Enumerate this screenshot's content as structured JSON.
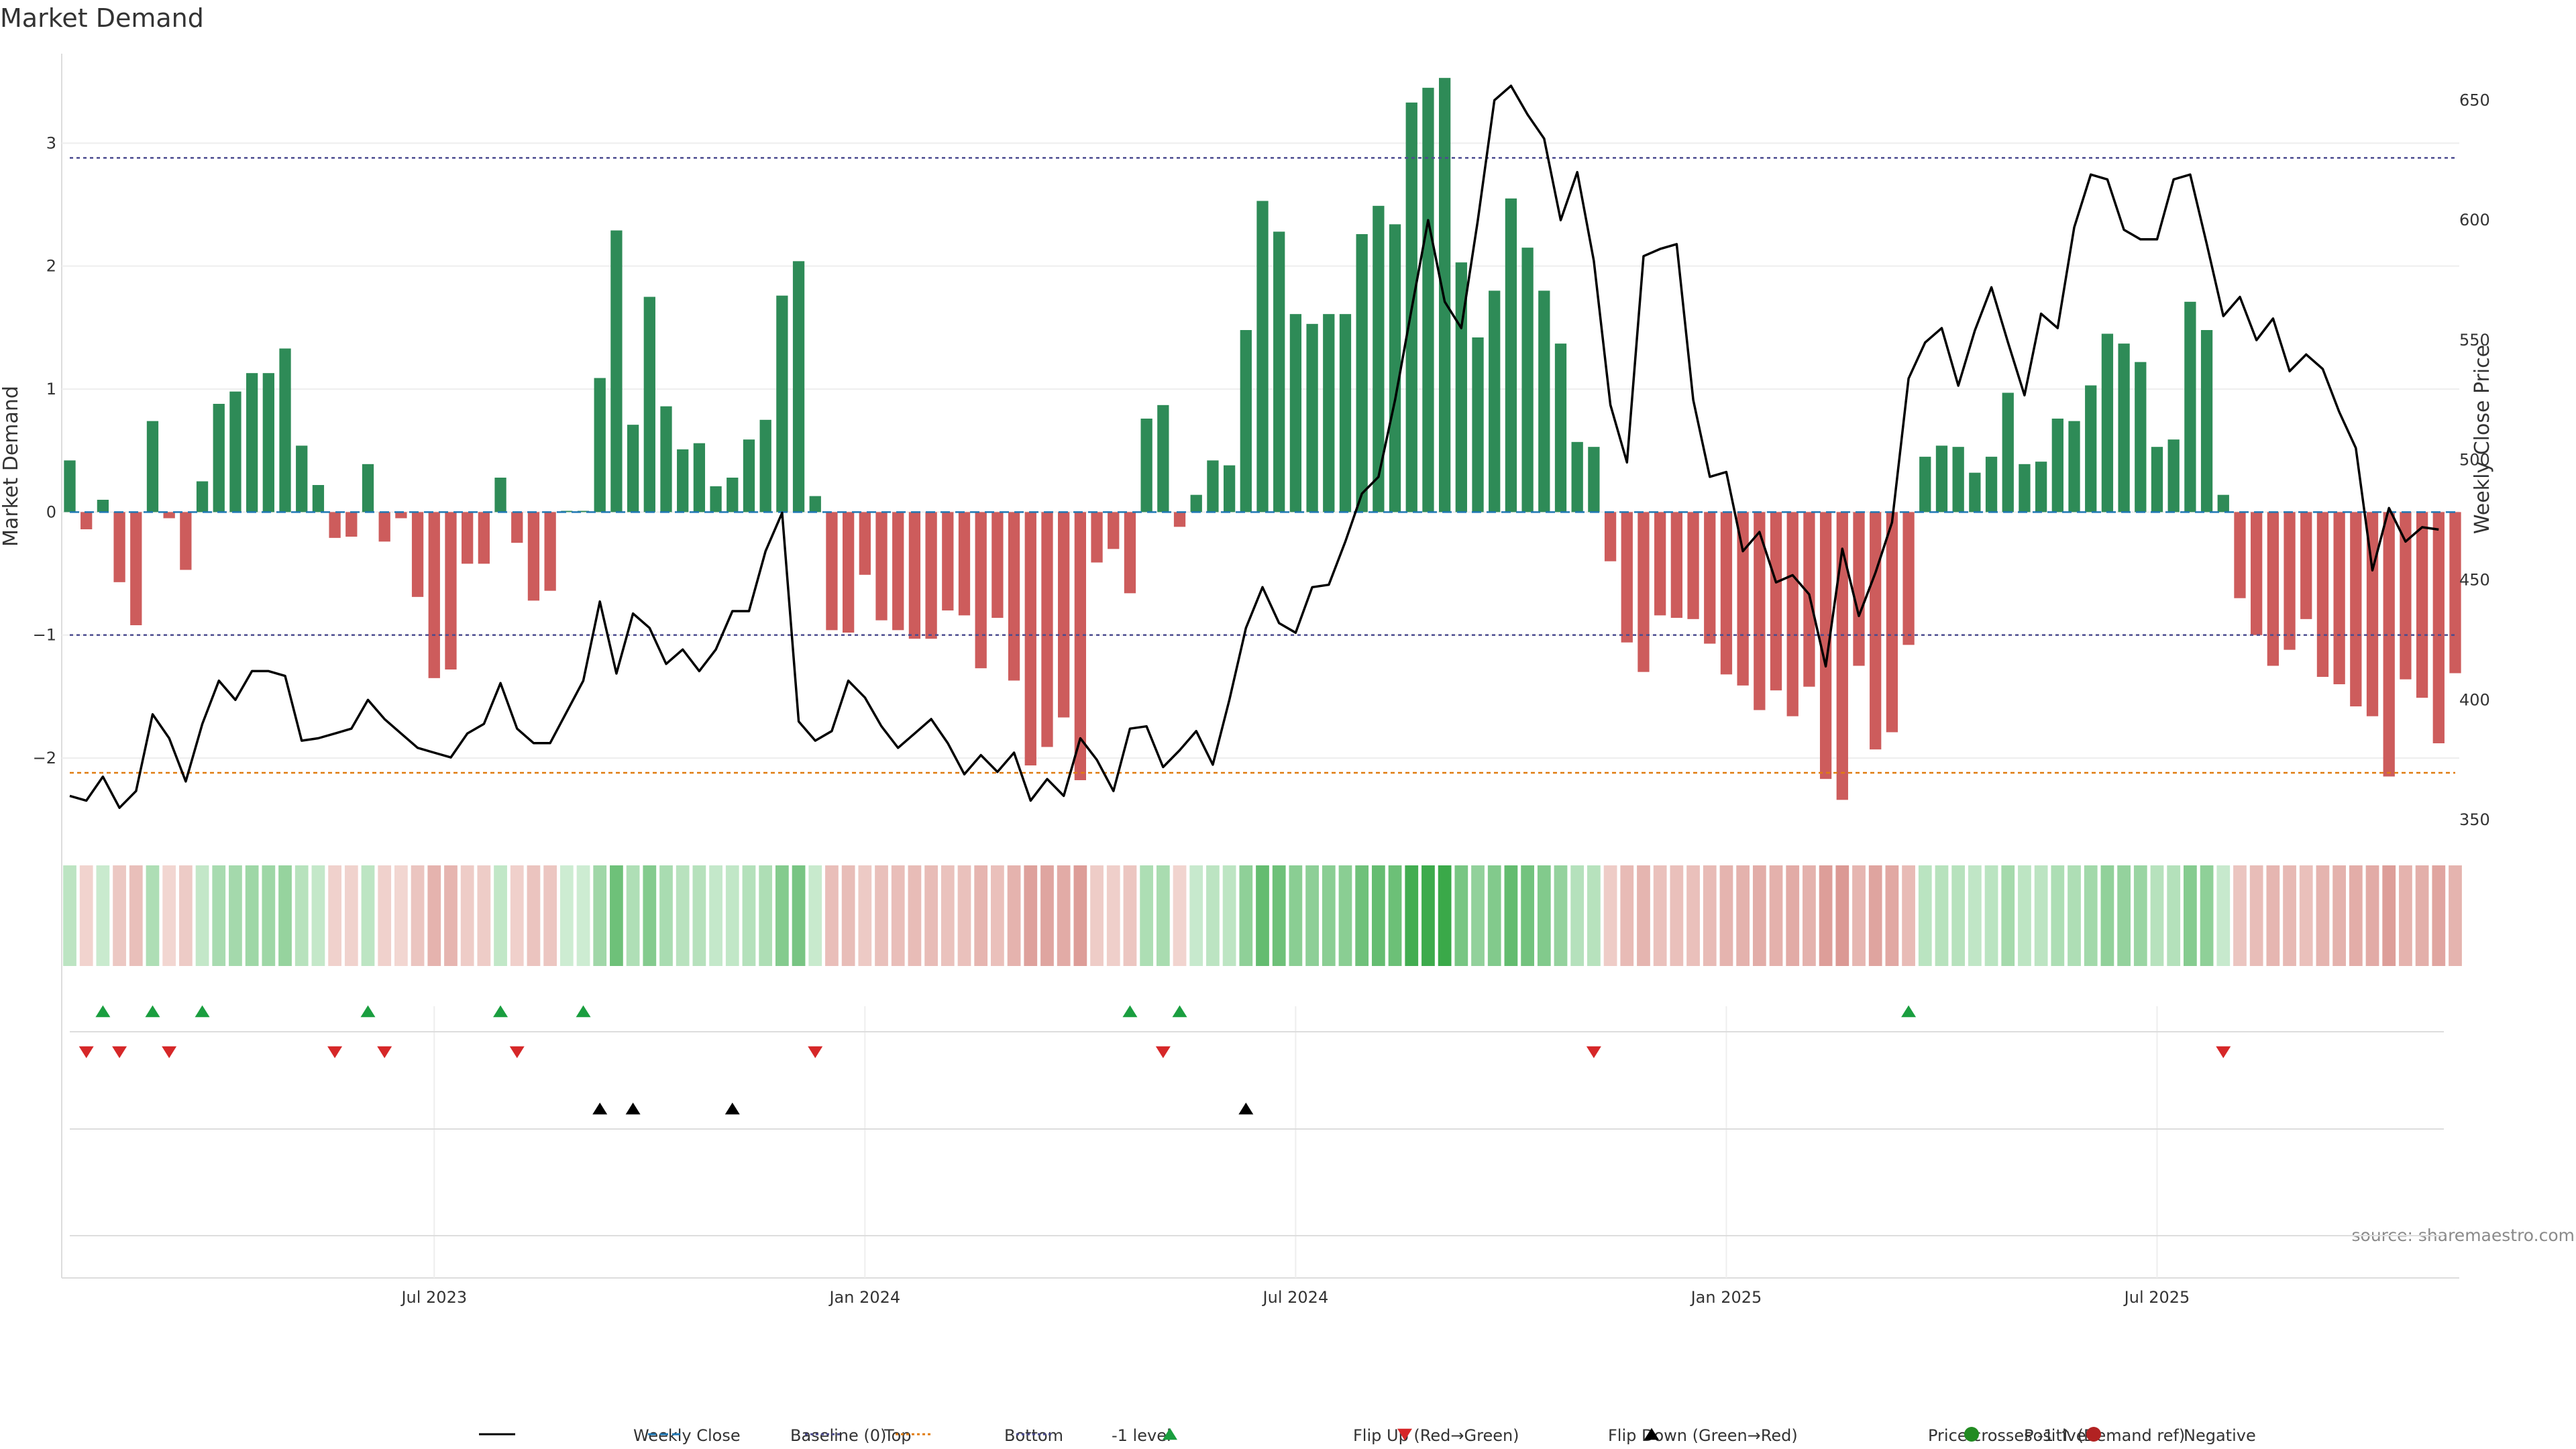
{
  "chart_data": {
    "type": "bar",
    "title": "Market Demand",
    "ylabel": "Market Demand",
    "y2label": "Weekly Close Price",
    "source": "source: sharemaestro.com",
    "ylim": [
      -2.6,
      3.7
    ],
    "y2lim": [
      345,
      668
    ],
    "yticks": [
      -2,
      -1,
      0,
      1,
      2,
      3
    ],
    "y2ticks": [
      350,
      400,
      450,
      500,
      550,
      600,
      650
    ],
    "x_tick_labels": [
      "Jul 2023",
      "Jan 2024",
      "Jul 2024",
      "Jan 2025",
      "Jul 2025"
    ],
    "x_tick_weeks": [
      22,
      48,
      74,
      100,
      126
    ],
    "reference_lines": {
      "top": 2.88,
      "bottom": -2.12,
      "minus_one": -1
    },
    "colors": {
      "positive": "#2e8b57",
      "negative": "#cd5c5c",
      "close": "#000000",
      "top": "#4b4b8f",
      "bottom": "#e07b10",
      "flip_up": "#1a9e3f",
      "flip_down": "#d62728"
    },
    "demand": [
      0.42,
      -0.14,
      0.1,
      -0.57,
      -0.92,
      0.74,
      -0.05,
      -0.47,
      0.25,
      0.88,
      0.98,
      1.13,
      1.13,
      1.33,
      0.54,
      0.22,
      -0.21,
      -0.2,
      0.39,
      -0.24,
      -0.05,
      -0.69,
      -1.35,
      -1.28,
      -0.42,
      -0.42,
      0.28,
      -0.25,
      -0.72,
      -0.64,
      0.01,
      0.01,
      1.09,
      2.29,
      0.71,
      1.75,
      0.86,
      0.51,
      0.56,
      0.21,
      0.28,
      0.59,
      0.75,
      1.76,
      2.04,
      0.13,
      -0.96,
      -0.98,
      -0.51,
      -0.88,
      -0.96,
      -1.03,
      -1.03,
      -0.8,
      -0.84,
      -1.27,
      -0.86,
      -1.37,
      -2.06,
      -1.91,
      -1.67,
      -2.18,
      -0.41,
      -0.3,
      -0.66,
      0.76,
      0.87,
      -0.12,
      0.14,
      0.42,
      0.38,
      1.48,
      2.53,
      2.28,
      1.61,
      1.53,
      1.61,
      1.61,
      2.26,
      2.49,
      2.34,
      3.33,
      3.45,
      3.53,
      2.03,
      1.42,
      1.8,
      2.55,
      2.15,
      1.8,
      1.37,
      0.57,
      0.53,
      -0.4,
      -1.06,
      -1.3,
      -0.84,
      -0.86,
      -0.87,
      -1.07,
      -1.32,
      -1.41,
      -1.61,
      -1.45,
      -1.66,
      -1.42,
      -2.17,
      -2.34,
      -1.25,
      -1.93,
      -1.79,
      -1.08,
      0.45,
      0.54,
      0.53,
      0.32,
      0.45,
      0.97,
      0.39,
      0.41,
      0.76,
      0.74,
      1.03,
      1.45,
      1.37,
      1.22,
      0.53,
      0.59,
      1.71,
      1.48,
      0.14,
      -0.7,
      -1.0,
      -1.25,
      -1.12,
      -0.87,
      -1.34,
      -1.4,
      -1.58,
      -1.66,
      -2.15,
      -1.36,
      -1.51,
      -1.88,
      -1.31
    ],
    "close": [
      360,
      358,
      368,
      355,
      362,
      394,
      384,
      366,
      390,
      408,
      400,
      412,
      412,
      410,
      383,
      384,
      386,
      388,
      400,
      392,
      386,
      380,
      378,
      376,
      386,
      390,
      407,
      388,
      382,
      382,
      395,
      408,
      441,
      411,
      436,
      430,
      415,
      421,
      412,
      421,
      437,
      437,
      462,
      478,
      391,
      383,
      387,
      408,
      401,
      389,
      380,
      386,
      392,
      382,
      369,
      377,
      370,
      378,
      358,
      367,
      360,
      384,
      375,
      362,
      388,
      389,
      372,
      379,
      387,
      373,
      400,
      430,
      447,
      432,
      428,
      447,
      448,
      466,
      486,
      493,
      525,
      563,
      600,
      566,
      555,
      600,
      650,
      656,
      644,
      634,
      600,
      620,
      583,
      523,
      499,
      585,
      588,
      590,
      525,
      493,
      495,
      462,
      470,
      449,
      452,
      444,
      414,
      463,
      435,
      453,
      474,
      534,
      549,
      555,
      531,
      554,
      572,
      549,
      527,
      561,
      555,
      597,
      619,
      617,
      596,
      592,
      592,
      617,
      619,
      590,
      560,
      568,
      550,
      559,
      537,
      544,
      538,
      520,
      505,
      454,
      480,
      466,
      472,
      471
    ],
    "flip_up_weeks": [
      2,
      5,
      8,
      18,
      26,
      31,
      64,
      67,
      111
    ],
    "flip_down_weeks": [
      1,
      3,
      6,
      16,
      19,
      27,
      45,
      66,
      92,
      130
    ],
    "cross_weeks": [
      32,
      34,
      40,
      71
    ],
    "legend": [
      {
        "type": "line-solid",
        "label": "Weekly Close",
        "color": "#000000"
      },
      {
        "type": "line-dash",
        "label": "Baseline (0)",
        "color": "#1f77b4"
      },
      {
        "type": "line-dot",
        "label": "Top",
        "color": "#4b4b8f"
      },
      {
        "type": "line-dot",
        "label": "Bottom",
        "color": "#e07b10"
      },
      {
        "type": "line-dot",
        "label": "-1 level",
        "color": "#4b4b8f"
      },
      {
        "type": "tri-up",
        "label": "Flip Up (Red→Green)",
        "color": "#1a9e3f"
      },
      {
        "type": "tri-down",
        "label": "Flip Down (Green→Red)",
        "color": "#d62728"
      },
      {
        "type": "tri-up",
        "label": "Price crosses -1 ↑ (Demand ref)",
        "color": "#000000"
      },
      {
        "type": "dot",
        "label": "Positive",
        "color": "#228b22"
      },
      {
        "type": "dot",
        "label": "Negative",
        "color": "#b22222"
      }
    ]
  }
}
